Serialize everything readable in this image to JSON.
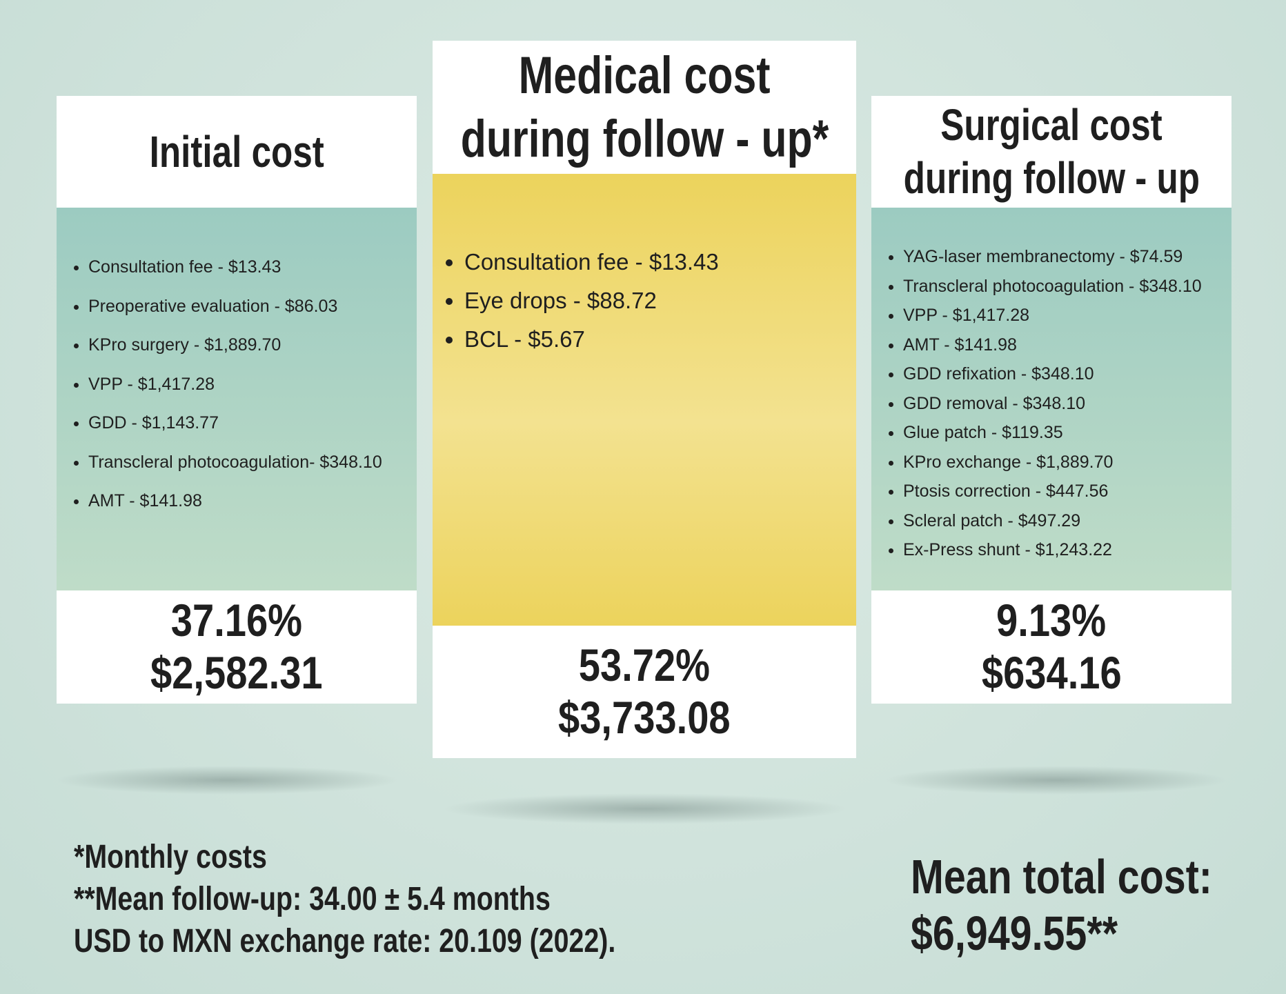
{
  "cards": [
    {
      "title_lines": [
        "Initial cost"
      ],
      "items": [
        "Consultation fee - $13.43",
        "Preoperative evaluation - $86.03",
        "KPro surgery - $1,889.70",
        "VPP - $1,417.28",
        "GDD - $1,143.77",
        "Transcleral photocoagulation- $348.10",
        "AMT - $141.98"
      ],
      "percent": "37.16%",
      "amount": "$2,582.31"
    },
    {
      "title_lines": [
        "Medical cost",
        "during follow - up*"
      ],
      "items": [
        "Consultation fee - $13.43",
        "Eye drops - $88.72",
        "BCL - $5.67"
      ],
      "percent": "53.72%",
      "amount": "$3,733.08"
    },
    {
      "title_lines": [
        "Surgical cost",
        "during follow - up"
      ],
      "items": [
        "YAG-laser membranectomy - $74.59",
        "Transcleral photocoagulation - $348.10",
        "VPP - $1,417.28",
        "AMT - $141.98",
        "GDD refixation - $348.10",
        "GDD removal - $348.10",
        "Glue patch - $119.35",
        "KPro exchange - $1,889.70",
        "Ptosis correction - $447.56",
        "Scleral patch - $497.29",
        "Ex-Press shunt - $1,243.22"
      ],
      "percent": "9.13%",
      "amount": "$634.16"
    }
  ],
  "footnotes": [
    "*Monthly costs",
    "**Mean follow-up:  34.00 ± 5.4 months",
    "USD to MXN exchange rate: 20.109 (2022)."
  ],
  "total": {
    "label": "Mean total cost:",
    "value": "$6,949.55**"
  }
}
